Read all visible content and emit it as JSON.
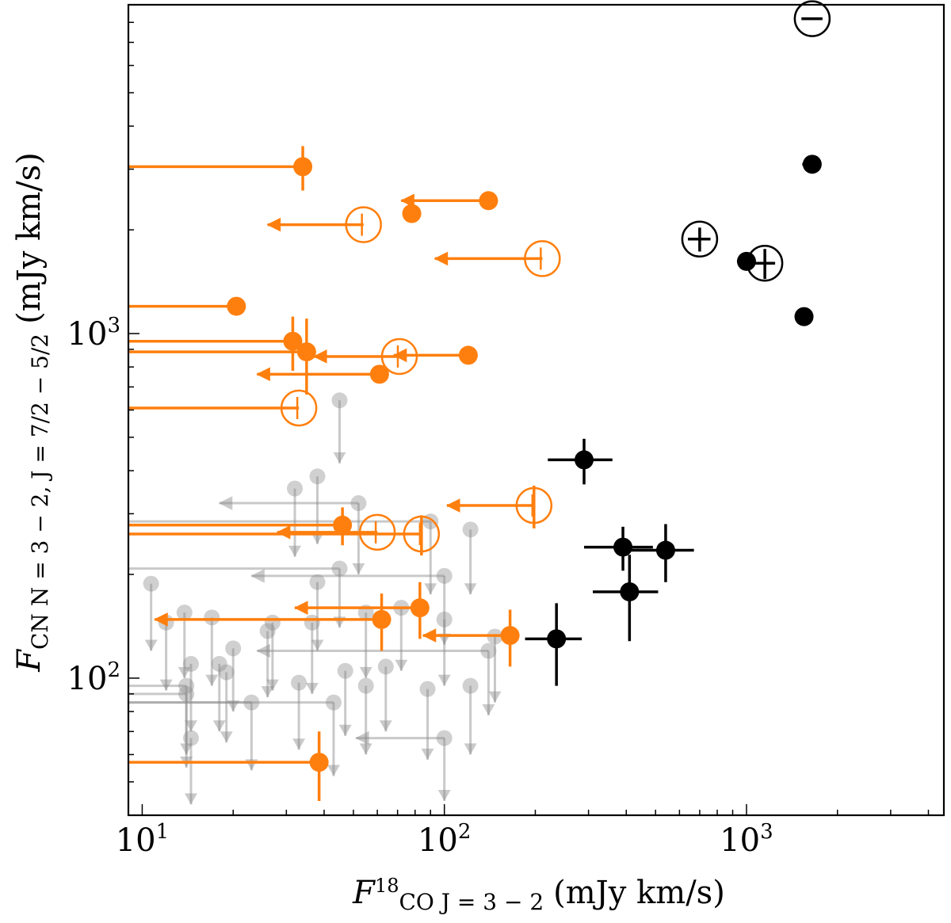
{
  "chart_data": {
    "type": "scatter",
    "x_scale": "log",
    "y_scale": "log",
    "xlim": [
      9.0,
      4500
    ],
    "ylim": [
      40,
      9000
    ],
    "xlabel": {
      "main": "F",
      "sub": "18",
      "sub2": "CO J = 3 − 2",
      "units": "(mJy km/s)"
    },
    "ylabel": {
      "main": "F",
      "sub": "CN N = 3 − 2, J = 7/2 − 5/2",
      "units": "(mJy km/s)"
    },
    "x_tick_labels": [
      {
        "value": 10,
        "base": "10",
        "exp": "1"
      },
      {
        "value": 100,
        "base": "10",
        "exp": "2"
      },
      {
        "value": 1000,
        "base": "10",
        "exp": "3"
      }
    ],
    "y_tick_labels": [
      {
        "value": 100,
        "base": "10",
        "exp": "2"
      },
      {
        "value": 1000,
        "base": "10",
        "exp": "3"
      }
    ],
    "colors": {
      "detected": "#000000",
      "orange": "#ff7f0e",
      "grey": "#a0a0a0"
    },
    "series": [
      {
        "key": "black_filled",
        "style": "filled",
        "color": "detected",
        "points": [
          {
            "x": 1650,
            "y": 3100,
            "xerr": 120,
            "yerr": 0
          },
          {
            "x": 1000,
            "y": 1620,
            "xerr": 70,
            "yerr": 0
          },
          {
            "x": 1550,
            "y": 1120,
            "xerr": 90,
            "yerr": 0
          },
          {
            "x": 290,
            "y": 430,
            "xerr": 70,
            "yerr": 65
          },
          {
            "x": 390,
            "y": 240,
            "xerr": 100,
            "yerr": 35
          },
          {
            "x": 540,
            "y": 235,
            "xerr": 130,
            "yerr": 45
          },
          {
            "x": 410,
            "y": 178,
            "xerr": 100,
            "yerr": 50
          },
          {
            "x": 235,
            "y": 130,
            "xerr": 50,
            "yerr": 35
          }
        ]
      },
      {
        "key": "black_open",
        "style": "open",
        "color": "detected",
        "points": [
          {
            "x": 1650,
            "y": 8200,
            "xerr": 130,
            "yerr": 0
          },
          {
            "x": 700,
            "y": 1880,
            "xerr": 60,
            "yerr": 150
          },
          {
            "x": 1150,
            "y": 1600,
            "xerr": 90,
            "yerr": 160
          }
        ]
      },
      {
        "key": "orange_filled",
        "style": "filled",
        "color": "orange",
        "points": [
          {
            "x": 34,
            "y": 3050,
            "xlim_to": 9.0,
            "yerr_hi": 450,
            "yerr_lo": 450
          },
          {
            "x": 140,
            "y": 2430,
            "xlim_to": 72
          },
          {
            "x": 78,
            "y": 2230,
            "xerr": 2
          },
          {
            "x": 20.5,
            "y": 1200,
            "xlim_to": 9.0
          },
          {
            "x": 31.5,
            "y": 950,
            "xlim_to": 9.0,
            "yerr_hi": 170,
            "yerr_lo": 170
          },
          {
            "x": 35,
            "y": 885,
            "xlim_to": 9.0,
            "yerr_hi": 220,
            "yerr_lo": 220
          },
          {
            "x": 120,
            "y": 865,
            "xlim_to": 68
          },
          {
            "x": 61,
            "y": 762,
            "xlim_to": 24
          },
          {
            "x": 46,
            "y": 278,
            "xlim_to": 9.0,
            "yerr_hi": 35,
            "yerr_lo": 35
          },
          {
            "x": 62,
            "y": 148,
            "xlim_to": 11,
            "yerr_hi": 28,
            "yerr_lo": 28
          },
          {
            "x": 83,
            "y": 160,
            "xlim_to": 32,
            "yerr_hi": 30,
            "yerr_lo": 30
          },
          {
            "x": 165,
            "y": 133,
            "xlim_to": 85,
            "yerr_hi": 25,
            "yerr_lo": 25
          },
          {
            "x": 38.5,
            "y": 57,
            "xlim_to": 9.0,
            "yerr_hi": 13,
            "yerr_lo": 13
          }
        ]
      },
      {
        "key": "orange_open",
        "style": "open",
        "color": "orange",
        "points": [
          {
            "x": 54,
            "y": 2070,
            "xlim_to": 26,
            "side_line": "long"
          },
          {
            "x": 211,
            "y": 1650,
            "xlim_to": 93
          },
          {
            "x": 71,
            "y": 858,
            "xlim_to": 37
          },
          {
            "x": 33,
            "y": 608,
            "xlim_to": 9.0
          },
          {
            "x": 198,
            "y": 317,
            "xlim_to": 102,
            "yerr_hi": 45,
            "yerr_lo": 45
          },
          {
            "x": 60,
            "y": 265,
            "xlim_to": 28
          },
          {
            "x": 84,
            "y": 262,
            "xlim_to": 9.0,
            "yerr_hi": 35,
            "yerr_lo": 35
          }
        ]
      },
      {
        "key": "grey_upper_limits",
        "style": "ghost",
        "color": "grey",
        "points": [
          {
            "x": 45,
            "y": 640,
            "down_to": 420
          },
          {
            "x": 32,
            "y": 355,
            "down_to": 225
          },
          {
            "x": 38,
            "y": 385,
            "down_to": 245
          },
          {
            "x": 52,
            "y": 322,
            "xlim_to": 18,
            "down_to": 200
          },
          {
            "x": 90,
            "y": 285,
            "xlim_to": 9.0,
            "down_to": 175
          },
          {
            "x": 122,
            "y": 270,
            "down_to": 175
          },
          {
            "x": 45,
            "y": 208,
            "xlim_to": 9.0,
            "down_to": 140
          },
          {
            "x": 38,
            "y": 190,
            "down_to": 120
          },
          {
            "x": 100,
            "y": 198,
            "xlim_to": 23,
            "down_to": 125
          },
          {
            "x": 10.7,
            "y": 188,
            "down_to": 120
          },
          {
            "x": 72,
            "y": 160,
            "down_to": 105
          },
          {
            "x": 55,
            "y": 155,
            "down_to": 100
          },
          {
            "x": 13.8,
            "y": 155,
            "down_to": 100
          },
          {
            "x": 17,
            "y": 150,
            "down_to": 95
          },
          {
            "x": 27,
            "y": 145,
            "down_to": 92
          },
          {
            "x": 36.5,
            "y": 145,
            "down_to": 90
          },
          {
            "x": 100,
            "y": 148,
            "down_to": 95
          },
          {
            "x": 12,
            "y": 145,
            "down_to": 92
          },
          {
            "x": 147,
            "y": 132,
            "down_to": 85
          },
          {
            "x": 26,
            "y": 137,
            "down_to": 88
          },
          {
            "x": 20,
            "y": 122,
            "down_to": 80
          },
          {
            "x": 140,
            "y": 120,
            "xlim_to": 24,
            "down_to": 78
          },
          {
            "x": 64,
            "y": 108,
            "down_to": 70
          },
          {
            "x": 14.5,
            "y": 110,
            "down_to": 70
          },
          {
            "x": 18,
            "y": 110,
            "down_to": 70
          },
          {
            "x": 19,
            "y": 104,
            "down_to": 65
          },
          {
            "x": 33,
            "y": 97,
            "down_to": 62
          },
          {
            "x": 47,
            "y": 105,
            "down_to": 68
          },
          {
            "x": 55,
            "y": 95,
            "down_to": 60
          },
          {
            "x": 88,
            "y": 93,
            "down_to": 58
          },
          {
            "x": 122,
            "y": 95,
            "down_to": 60
          },
          {
            "x": 14,
            "y": 95,
            "xlim_to": 9.0,
            "down_to": 60
          },
          {
            "x": 14,
            "y": 90,
            "xlim_to": 9.0,
            "down_to": 55
          },
          {
            "x": 23,
            "y": 85,
            "xlim_to": 9.0,
            "down_to": 54
          },
          {
            "x": 43,
            "y": 85,
            "xlim_to": 9.0,
            "down_to": 52
          },
          {
            "x": 14.5,
            "y": 67,
            "down_to": 43
          },
          {
            "x": 100,
            "y": 67,
            "xlim_to": 51,
            "down_to": 44
          }
        ]
      }
    ]
  }
}
